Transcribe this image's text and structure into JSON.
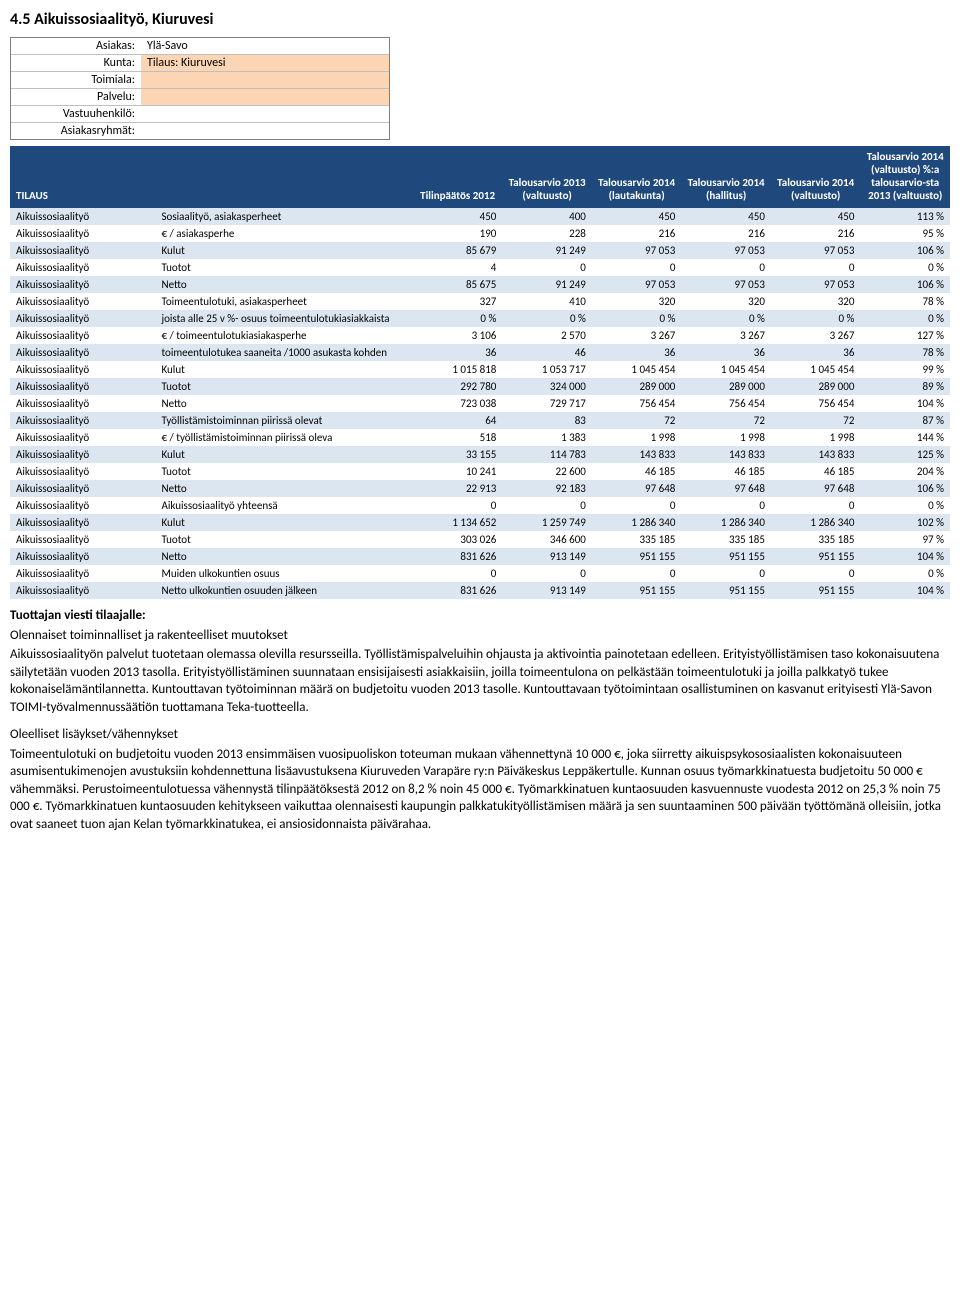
{
  "heading": "4.5  Aikuissosiaalityö, Kiuruvesi",
  "info": {
    "rows": [
      {
        "label": "Asiakas:",
        "value": "Ylä-Savo"
      },
      {
        "label": "Kunta:",
        "value": "Tilaus: Kiuruvesi",
        "highlight": true
      },
      {
        "label": "Toimiala:",
        "value": "",
        "highlight": true
      },
      {
        "label": "Palvelu:",
        "value": "",
        "highlight": true
      },
      {
        "label": "Vastuuhenkilö:",
        "value": ""
      },
      {
        "label": "Asiakasryhmät:",
        "value": ""
      }
    ]
  },
  "table": {
    "columns": [
      "TILAUS",
      "",
      "Tilinpäätös 2012",
      "Talousarvio 2013 (valtuusto)",
      "Talousarvio 2014 (lautakunta)",
      "Talousarvio 2014 (hallitus)",
      "Talousarvio 2014 (valtuusto)",
      "Talousarvio 2014 (valtuusto) %:a talousarvio-sta 2013 (valtuusto)"
    ],
    "rows": [
      [
        "Aikuissosiaalityö",
        "Sosiaalityö, asiakasperheet",
        "450",
        "400",
        "450",
        "450",
        "450",
        "113 %"
      ],
      [
        "Aikuissosiaalityö",
        "€ / asiakasperhe",
        "190",
        "228",
        "216",
        "216",
        "216",
        "95 %"
      ],
      [
        "Aikuissosiaalityö",
        "Kulut",
        "85 679",
        "91 249",
        "97 053",
        "97 053",
        "97 053",
        "106 %"
      ],
      [
        "Aikuissosiaalityö",
        "Tuotot",
        "4",
        "0",
        "0",
        "0",
        "0",
        "0 %"
      ],
      [
        "Aikuissosiaalityö",
        "Netto",
        "85 675",
        "91 249",
        "97 053",
        "97 053",
        "97 053",
        "106 %"
      ],
      [
        "Aikuissosiaalityö",
        "Toimeentulotuki, asiakasperheet",
        "327",
        "410",
        "320",
        "320",
        "320",
        "78 %"
      ],
      [
        "Aikuissosiaalityö",
        "joista alle 25 v %- osuus toimeentulotukiasiakkaista",
        "0 %",
        "0 %",
        "0 %",
        "0 %",
        "0 %",
        "0 %"
      ],
      [
        "Aikuissosiaalityö",
        "€ / toimeentulotukiasiakasperhe",
        "3 106",
        "2 570",
        "3 267",
        "3 267",
        "3 267",
        "127 %"
      ],
      [
        "Aikuissosiaalityö",
        "toimeentulotukea saaneita /1000 asukasta kohden",
        "36",
        "46",
        "36",
        "36",
        "36",
        "78 %"
      ],
      [
        "Aikuissosiaalityö",
        "Kulut",
        "1 015 818",
        "1 053 717",
        "1 045 454",
        "1 045 454",
        "1 045 454",
        "99 %"
      ],
      [
        "Aikuissosiaalityö",
        "Tuotot",
        "292 780",
        "324 000",
        "289 000",
        "289 000",
        "289 000",
        "89 %"
      ],
      [
        "Aikuissosiaalityö",
        "Netto",
        "723 038",
        "729 717",
        "756 454",
        "756 454",
        "756 454",
        "104 %"
      ],
      [
        "Aikuissosiaalityö",
        "Työllistämistoiminnan piirissä olevat",
        "64",
        "83",
        "72",
        "72",
        "72",
        "87 %"
      ],
      [
        "Aikuissosiaalityö",
        "€ / työllistämistoiminnan piirissä oleva",
        "518",
        "1 383",
        "1 998",
        "1 998",
        "1 998",
        "144 %"
      ],
      [
        "Aikuissosiaalityö",
        "Kulut",
        "33 155",
        "114 783",
        "143 833",
        "143 833",
        "143 833",
        "125 %"
      ],
      [
        "Aikuissosiaalityö",
        "Tuotot",
        "10 241",
        "22 600",
        "46 185",
        "46 185",
        "46 185",
        "204 %"
      ],
      [
        "Aikuissosiaalityö",
        "Netto",
        "22 913",
        "92 183",
        "97 648",
        "97 648",
        "97 648",
        "106 %"
      ],
      [
        "Aikuissosiaalityö",
        "Aikuissosiaalityö yhteensä",
        "0",
        "0",
        "0",
        "0",
        "0",
        "0 %"
      ],
      [
        "Aikuissosiaalityö",
        "Kulut",
        "1 134 652",
        "1 259 749",
        "1 286 340",
        "1 286 340",
        "1 286 340",
        "102 %"
      ],
      [
        "Aikuissosiaalityö",
        "Tuotot",
        "303 026",
        "346 600",
        "335 185",
        "335 185",
        "335 185",
        "97 %"
      ],
      [
        "Aikuissosiaalityö",
        "Netto",
        "831 626",
        "913 149",
        "951 155",
        "951 155",
        "951 155",
        "104 %"
      ],
      [
        "Aikuissosiaalityö",
        "Muiden ulkokuntien osuus",
        "0",
        "0",
        "0",
        "0",
        "0",
        "0 %"
      ],
      [
        "Aikuissosiaalityö",
        "Netto ulkokuntien osuuden jälkeen",
        "831 626",
        "913 149",
        "951 155",
        "951 155",
        "951 155",
        "104 %"
      ]
    ]
  },
  "body": {
    "title1": "Tuottajan viesti tilaajalle:",
    "subtitle1": "Olennaiset toiminnalliset ja rakenteelliset muutokset",
    "p1": "Aikuissosiaalityön palvelut tuotetaan olemassa olevilla resursseilla. Työllistämispalveluihin ohjausta ja aktivointia painotetaan edelleen. Erityistyöllistämisen taso kokonaisuutena säilytetään vuoden 2013 tasolla. Erityistyöllistäminen suunnataan ensisijaisesti asiakkaisiin, joilla toimeentulona on pelkästään toimeentulotuki ja joilla palkkatyö tukee kokonaiselämäntilannetta. Kuntouttavan työtoiminnan määrä on budjetoitu vuoden 2013 tasolle. Kuntouttavaan työtoimintaan osallistuminen on kasvanut erityisesti Ylä-Savon TOIMI-työvalmennussäätiön tuottamana Teka-tuotteella.",
    "subtitle2": "Oleelliset lisäykset/vähennykset",
    "p2": "Toimeentulotuki on budjetoitu vuoden 2013 ensimmäisen vuosipuoliskon toteuman mukaan vähennettynä 10 000 €, joka siirretty aikuispsykososiaalisten kokonaisuuteen asumisentukimenojen avustuksiin kohdennettuna lisäavustuksena Kiuruveden Varapäre ry:n Päiväkeskus Leppäkertulle. Kunnan osuus työmarkkinatuesta budjetoitu 50 000 € vähemmäksi. Perustoimeentulotuessa vähennystä tilinpäätöksestä 2012 on 8,2 % noin 45 000 €. Työmarkkinatuen kuntaosuuden kasvuennuste vuodesta 2012 on 25,3 % noin 75 000 €. Työmarkkinatuen kuntaosuuden kehitykseen vaikuttaa olennaisesti kaupungin palkkatukityöllistämisen määrä ja sen suuntaaminen 500 päivään työttömänä olleisiin, jotka ovat saaneet tuon ajan Kelan työmarkkinatukea, ei ansiosidonnaista päivärahaa."
  }
}
